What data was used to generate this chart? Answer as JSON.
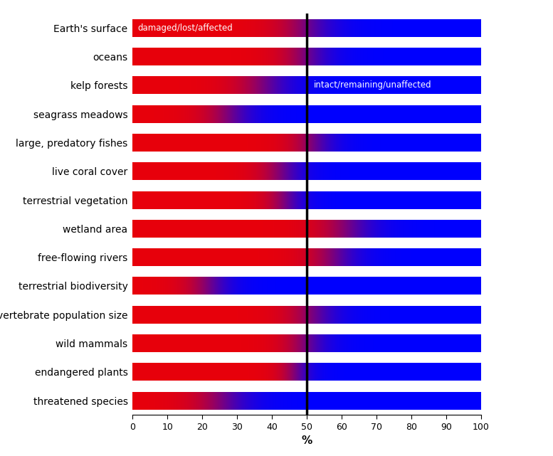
{
  "categories": [
    "Earth's surface",
    "oceans",
    "kelp forests",
    "seagrass meadows",
    "large, predatory fishes",
    "live coral cover",
    "terrestrial vegetation",
    "wetland area",
    "free-flowing rivers",
    "terrestrial biodiversity",
    "vertebrate population size",
    "wild mammals",
    "endangered plants",
    "threatened species"
  ],
  "transition_centers": [
    0.5,
    0.5,
    0.38,
    0.28,
    0.52,
    0.43,
    0.44,
    0.62,
    0.58,
    0.22,
    0.52,
    0.5,
    0.47,
    0.26
  ],
  "transition_widths": [
    0.18,
    0.16,
    0.18,
    0.16,
    0.14,
    0.14,
    0.12,
    0.18,
    0.16,
    0.14,
    0.16,
    0.14,
    0.1,
    0.18
  ],
  "red_color": "#e8000b",
  "blue_color": "#0000ff",
  "bar_height": 0.62,
  "background_color": "#ffffff",
  "xlabel": "%",
  "damaged_label": "damaged/lost/affected",
  "intact_label": "intact/remaining/unaffected",
  "vline_x": 50,
  "xlim": [
    0,
    100
  ],
  "xticks": [
    0,
    10,
    20,
    30,
    40,
    50,
    60,
    70,
    80,
    90,
    100
  ]
}
